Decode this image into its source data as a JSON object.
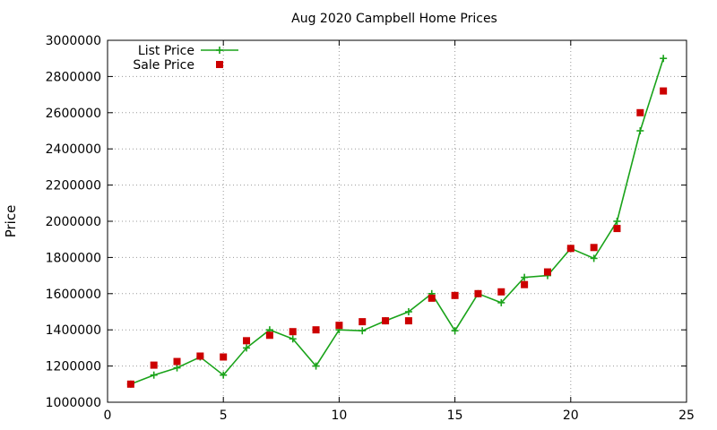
{
  "chart_data": {
    "type": "line",
    "title": "Aug 2020 Campbell Home Prices",
    "xlabel": "",
    "ylabel": "Price",
    "xlim": [
      0,
      25
    ],
    "ylim": [
      1000000,
      3000000
    ],
    "xticks": [
      0,
      5,
      10,
      15,
      20,
      25
    ],
    "yticks": [
      1000000,
      1200000,
      1400000,
      1600000,
      1800000,
      2000000,
      2200000,
      2400000,
      2600000,
      2800000,
      3000000
    ],
    "grid": true,
    "legend_position": "top-left",
    "x": [
      1,
      2,
      3,
      4,
      5,
      6,
      7,
      8,
      9,
      10,
      11,
      12,
      13,
      14,
      15,
      16,
      17,
      18,
      19,
      20,
      21,
      22,
      23,
      24
    ],
    "series": [
      {
        "name": "List Price",
        "style": "line-plus",
        "color": "#1aa31a",
        "values": [
          1100000,
          1150000,
          1190000,
          1250000,
          1150000,
          1300000,
          1400000,
          1350000,
          1200000,
          1400000,
          1395000,
          1450000,
          1500000,
          1600000,
          1395000,
          1600000,
          1550000,
          1690000,
          1700000,
          1850000,
          1795000,
          2000000,
          2500000,
          2900000
        ]
      },
      {
        "name": "Sale Price",
        "style": "square",
        "color": "#cc0000",
        "values": [
          1100000,
          1205000,
          1225000,
          1255000,
          1250000,
          1340000,
          1370000,
          1390000,
          1400000,
          1425000,
          1445000,
          1450000,
          1450000,
          1575000,
          1590000,
          1600000,
          1610000,
          1650000,
          1720000,
          1850000,
          1855000,
          1960000,
          2600000,
          2720000
        ]
      }
    ]
  }
}
